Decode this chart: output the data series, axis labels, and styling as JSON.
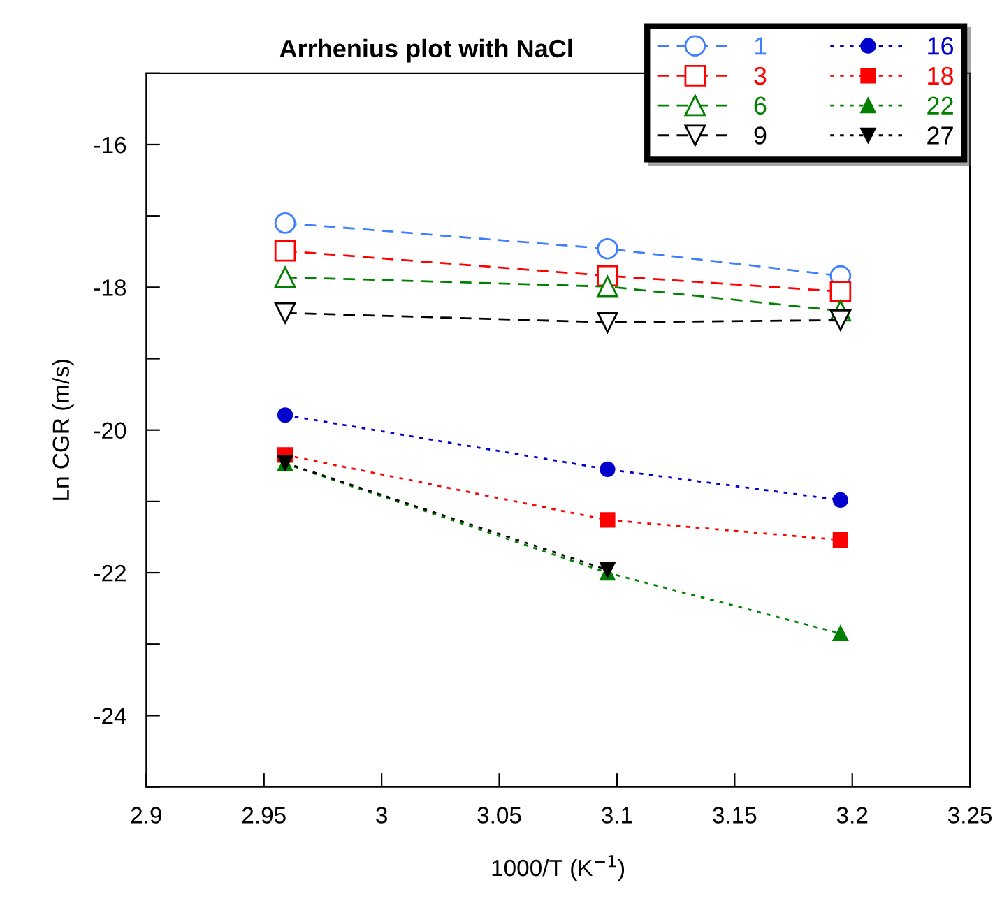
{
  "chart_data": {
    "type": "line",
    "title": "Arrhenius plot with NaCl",
    "xlabel": "1000/T (K$^{−1}$)",
    "ylabel": "Ln CGR (m/s)",
    "x": [
      2.959,
      3.096,
      3.195
    ],
    "series": [
      {
        "name": "1",
        "color": "#3f7fff",
        "marker": "circle",
        "line_style": "dashed",
        "values": [
          -17.1,
          -17.46,
          -17.84
        ]
      },
      {
        "name": "3",
        "color": "#ff0000",
        "marker": "square",
        "line_style": "dashed",
        "values": [
          -17.49,
          -17.84,
          -18.06
        ]
      },
      {
        "name": "6",
        "color": "#008000",
        "marker": "triangle",
        "line_style": "dashed",
        "values": [
          -17.86,
          -17.99,
          -18.33
        ]
      },
      {
        "name": "9",
        "color": "#000000",
        "marker": "triangle_down",
        "line_style": "dashed",
        "values": [
          -18.36,
          -18.49,
          -18.46
        ]
      },
      {
        "name": "16",
        "color": "#0000cc",
        "marker": "circle",
        "line_style": "dotted",
        "values": [
          -19.79,
          -20.55,
          -20.98
        ]
      },
      {
        "name": "18",
        "color": "#ff0000",
        "marker": "square",
        "line_style": "dotted",
        "values": [
          -20.35,
          -21.26,
          -21.54
        ]
      },
      {
        "name": "22",
        "color": "#008000",
        "marker": "triangle",
        "line_style": "dotted",
        "values": [
          -20.47,
          -22.0,
          -22.85
        ]
      },
      {
        "name": "27",
        "color": "#000000",
        "marker": "triangle_down",
        "line_style": "dotted",
        "values": [
          -20.46,
          -21.96,
          null
        ]
      }
    ],
    "xlim": [
      2.9,
      3.25
    ],
    "ylim": [
      -25,
      -15
    ],
    "xticks": [
      2.9,
      2.95,
      3,
      3.05,
      3.1,
      3.15,
      3.2,
      3.25
    ],
    "yticks": [
      {
        "value": -25,
        "label": null
      },
      -24,
      {
        "value": -23,
        "label": null
      },
      -22,
      {
        "value": -21,
        "label": null
      },
      -20,
      {
        "value": -19,
        "label": null
      },
      -18,
      {
        "value": -17,
        "label": null
      },
      -16,
      {
        "value": -15,
        "label": null
      }
    ],
    "grid": false,
    "legend": "top right"
  }
}
